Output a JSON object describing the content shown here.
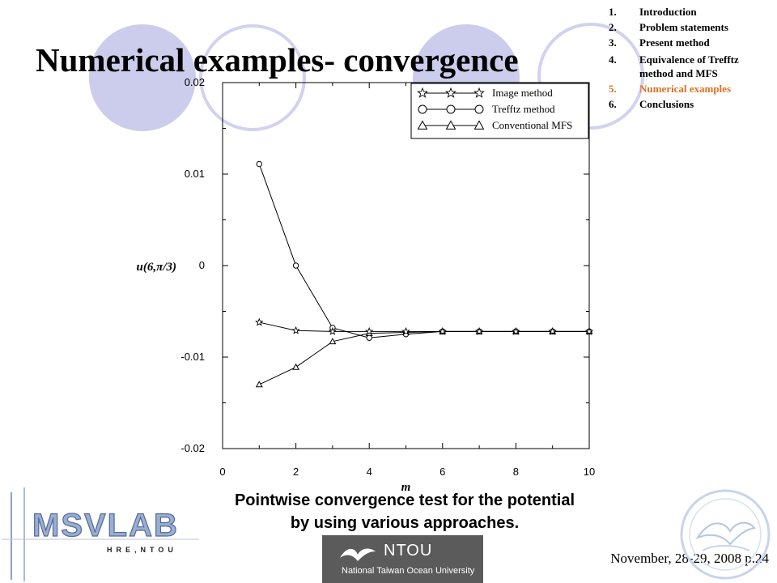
{
  "slide": {
    "title": "Numerical examples- convergence",
    "toc": [
      {
        "num": "1.",
        "text": "Introduction",
        "active": false
      },
      {
        "num": "2.",
        "text": "Problem statements",
        "active": false
      },
      {
        "num": "3.",
        "text": "Present method",
        "active": false
      },
      {
        "num": "4.",
        "text": "Equivalence of Trefftz method and MFS",
        "active": false
      },
      {
        "num": "5.",
        "text": "Numerical examples",
        "active": true
      },
      {
        "num": "6.",
        "text": "Conclusions",
        "active": false
      }
    ],
    "caption_line1": "Pointwise convergence test for the potential",
    "caption_line2": "by using various approaches.",
    "footer_date": "November, 28-29, 2008 p.24",
    "ntou_abbr": "NTOU",
    "ntou_full": "National Taiwan Ocean University",
    "msvlab_logo": "MSVLAB",
    "msvlab_sub": "HRE,NTOU",
    "accent_color": "#e07020",
    "circle_color": "#ccccec"
  },
  "chart_data": {
    "type": "line",
    "xlabel": "m",
    "ylabel": "u(6,π/3)",
    "xlim": [
      0,
      10
    ],
    "ylim": [
      -0.02,
      0.02
    ],
    "x_ticks": [
      "0",
      "2",
      "4",
      "6",
      "8",
      "10"
    ],
    "y_ticks": [
      "0.02",
      "0.01",
      "0",
      "-0.01",
      "-0.02"
    ],
    "legend_position": "top-right",
    "grid": false,
    "series": [
      {
        "name": "Image method",
        "marker": "star",
        "x": [
          1,
          2,
          3,
          4,
          5,
          6,
          7,
          8,
          9,
          10
        ],
        "values": [
          -0.0062,
          -0.0071,
          -0.0072,
          -0.0072,
          -0.0072,
          -0.0072,
          -0.0072,
          -0.0072,
          -0.0072,
          -0.0072
        ]
      },
      {
        "name": "Trefftz method",
        "marker": "circle",
        "x": [
          1,
          2,
          3,
          4,
          5,
          6,
          7,
          8,
          9,
          10
        ],
        "values": [
          0.0111,
          0.0,
          -0.0068,
          -0.0079,
          -0.0075,
          -0.0072,
          -0.0072,
          -0.0072,
          -0.0072,
          -0.0072
        ]
      },
      {
        "name": "Conventional MFS",
        "marker": "triangle",
        "x": [
          1,
          2,
          3,
          4,
          5,
          6,
          7,
          8,
          9,
          10
        ],
        "values": [
          -0.013,
          -0.0111,
          -0.0083,
          -0.0074,
          -0.0073,
          -0.0072,
          -0.0072,
          -0.0072,
          -0.0072,
          -0.0072
        ]
      }
    ]
  }
}
